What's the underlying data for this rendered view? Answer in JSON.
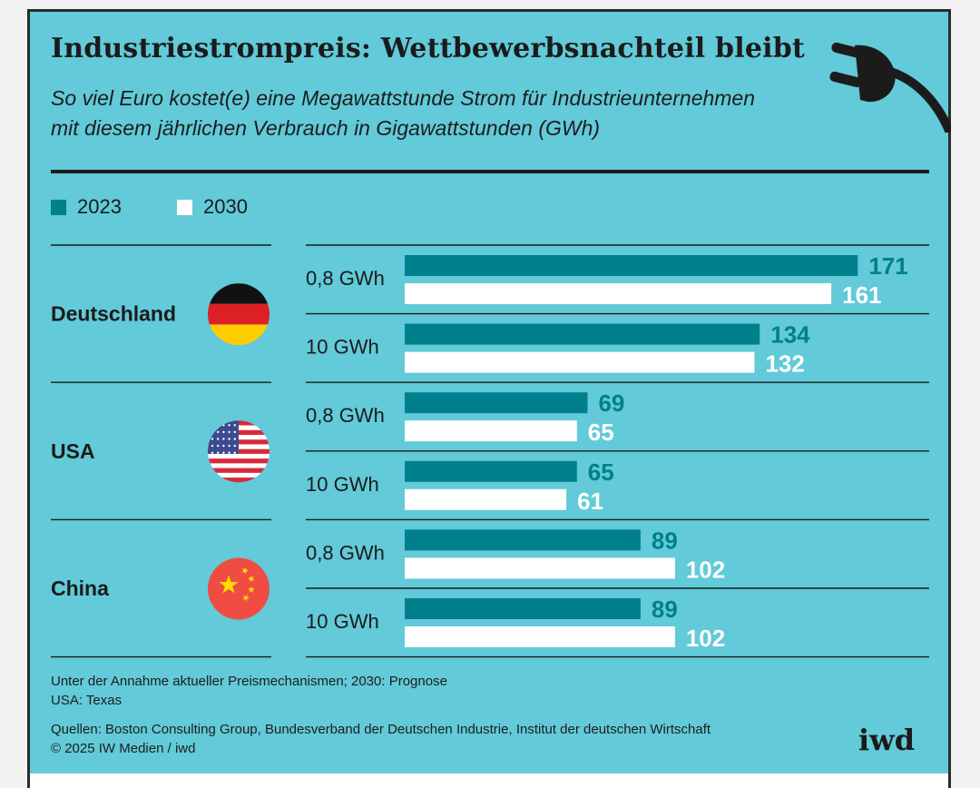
{
  "header": {
    "title": "Industriestrompreis: Wettbewerbsnachteil bleibt",
    "subtitle_line1": "So viel Euro kostet(e) eine Megawattstunde Strom für Industrieunternehmen",
    "subtitle_line2": "mit diesem jährlichen Verbrauch in Gigawattstunden (GWh)"
  },
  "legend": [
    {
      "label": "2023",
      "color": "#00808c"
    },
    {
      "label": "2030",
      "color": "#ffffff"
    }
  ],
  "chart_data": {
    "type": "bar",
    "orientation": "horizontal",
    "title": "Industriestrompreis: Wettbewerbsnachteil bleibt",
    "unit": "Euro je Megawattstunde",
    "colors": {
      "2023": "#00808c",
      "2030": "#ffffff"
    },
    "countries": [
      {
        "name": "Deutschland",
        "flag": "germany-flag",
        "groups": [
          {
            "label": "0,8 GWh",
            "values": {
              "2023": 171,
              "2030": 161
            }
          },
          {
            "label": "10 GWh",
            "values": {
              "2023": 134,
              "2030": 132
            }
          }
        ]
      },
      {
        "name": "USA",
        "flag": "usa-flag",
        "groups": [
          {
            "label": "0,8 GWh",
            "values": {
              "2023": 69,
              "2030": 65
            }
          },
          {
            "label": "10 GWh",
            "values": {
              "2023": 65,
              "2030": 61
            }
          }
        ]
      },
      {
        "name": "China",
        "flag": "china-flag",
        "groups": [
          {
            "label": "0,8 GWh",
            "values": {
              "2023": 89,
              "2030": 102
            }
          },
          {
            "label": "10 GWh",
            "values": {
              "2023": 89,
              "2030": 102
            }
          }
        ]
      }
    ],
    "series": [
      {
        "name": "2023",
        "values": [
          171,
          134,
          69,
          65,
          89,
          89
        ]
      },
      {
        "name": "2030",
        "values": [
          161,
          132,
          65,
          61,
          102,
          102
        ]
      }
    ],
    "grid": false,
    "legend_position": "top-left"
  },
  "footer": {
    "note_line1": "Unter der Annahme aktueller Preismechanismen; 2030: Prognose",
    "note_line2": "USA: Texas",
    "source_line1": "Quellen: Boston Consulting Group, Bundesverband der Deutschen Industrie, Institut der deutschen Wirtschaft",
    "source_line2": "© 2025 IW Medien / iwd",
    "logo": "iwd"
  }
}
